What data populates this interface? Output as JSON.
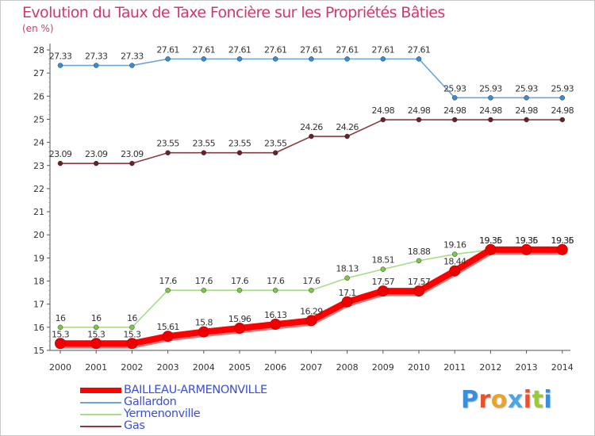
{
  "header": {
    "title": "Evolution du Taux de Taxe Foncière sur les Propriétés Bâties",
    "subtitle": "(en %)"
  },
  "logo": {
    "text": "Proxiti",
    "colors": [
      "#3a8ee0",
      "#e8542a",
      "#e8a42a",
      "#4aa8e0",
      "#e8542a",
      "#9bc93e",
      "#3a8ee0"
    ]
  },
  "chart_data": {
    "type": "line",
    "x": [
      2000,
      2001,
      2002,
      2003,
      2004,
      2005,
      2006,
      2007,
      2008,
      2009,
      2010,
      2011,
      2012,
      2013,
      2014
    ],
    "xtick_labels": [
      "2000",
      "2001",
      "2002",
      "2003",
      "2004",
      "2005",
      "2006",
      "2007",
      "2008",
      "2009",
      "2010",
      "2011",
      "2012",
      "2013",
      "2014"
    ],
    "ylim": [
      15,
      28
    ],
    "yticks": [
      15,
      16,
      17,
      18,
      19,
      20,
      21,
      22,
      23,
      24,
      25,
      26,
      27,
      28
    ],
    "ytick_labels": [
      "15",
      "16",
      "17",
      "18",
      "19",
      "20",
      "21",
      "22",
      "23",
      "24",
      "25",
      "26",
      "27",
      "28"
    ],
    "grid": false,
    "series": [
      {
        "name": "Gallardon",
        "color": "#6aa4d8",
        "marker": "#3a8bd0",
        "values": [
          27.33,
          27.33,
          27.33,
          27.61,
          27.61,
          27.61,
          27.61,
          27.61,
          27.61,
          27.61,
          27.61,
          25.93,
          25.93,
          25.93,
          25.93
        ],
        "labels": [
          "27.33",
          "27.33",
          "27.33",
          "27.61",
          "27.61",
          "27.61",
          "27.61",
          "27.61",
          "27.61",
          "27.61",
          "27.61",
          "25.93",
          "25.93",
          "25.93",
          "25.93"
        ]
      },
      {
        "name": "Gas",
        "color": "#8a3a42",
        "marker": "#6a2028",
        "values": [
          23.09,
          23.09,
          23.09,
          23.55,
          23.55,
          23.55,
          23.55,
          24.26,
          24.26,
          24.98,
          24.98,
          24.98,
          24.98,
          24.98,
          24.98
        ],
        "labels": [
          "23.09",
          "23.09",
          "23.09",
          "23.55",
          "23.55",
          "23.55",
          "23.55",
          "24.26",
          "24.26",
          "24.98",
          "24.98",
          "24.98",
          "24.98",
          "24.98",
          "24.98"
        ]
      },
      {
        "name": "Yermenonville",
        "color": "#a8dc86",
        "marker": "#7cc84a",
        "values": [
          16,
          16,
          16,
          17.6,
          17.6,
          17.6,
          17.6,
          17.6,
          18.13,
          18.51,
          18.88,
          19.16,
          19.35,
          19.35,
          19.35
        ],
        "labels": [
          "16",
          "16",
          "16",
          "17.6",
          "17.6",
          "17.6",
          "17.6",
          "17.6",
          "18.13",
          "18.51",
          "18.88",
          "19.16",
          "19.35",
          "19.35",
          "19.35"
        ]
      },
      {
        "name": "BAILLEAU-ARMENONVILLE",
        "color": "#ff0000",
        "marker": "#ee0000",
        "values": [
          15.3,
          15.3,
          15.3,
          15.61,
          15.8,
          15.96,
          16.13,
          16.29,
          17.1,
          17.57,
          17.57,
          18.44,
          19.36,
          19.36,
          19.36
        ],
        "labels": [
          "15.3",
          "15.3",
          "15.3",
          "15.61",
          "15.8",
          "15.96",
          "16.13",
          "16.29",
          "17.1",
          "17.57",
          "17.57",
          "18.44",
          "19.36",
          "19.36",
          "19.36"
        ]
      }
    ],
    "legend": {
      "placement": "bottom-left",
      "entries": [
        "BAILLEAU-ARMENONVILLE",
        "Gallardon",
        "Yermenonville",
        "Gas"
      ]
    }
  }
}
